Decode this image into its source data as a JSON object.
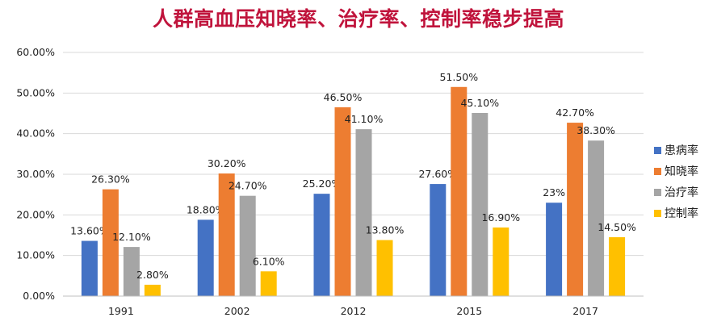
{
  "chart_data": {
    "type": "bar",
    "title": "人群高血压知晓率、治疗率、控制率稳步提高",
    "categories": [
      "1991",
      "2002",
      "2012",
      "2015",
      "2017"
    ],
    "series": [
      {
        "name": "患病率",
        "color": "#4472c4",
        "values": [
          13.6,
          18.8,
          25.2,
          27.6,
          23.0
        ],
        "labels": [
          "13.60%",
          "18.80%",
          "25.20%",
          "27.60%",
          "23%"
        ]
      },
      {
        "name": "知晓率",
        "color": "#ed7d31",
        "values": [
          26.3,
          30.2,
          46.5,
          51.5,
          42.7
        ],
        "labels": [
          "26.30%",
          "30.20%",
          "46.50%",
          "51.50%",
          "42.70%"
        ]
      },
      {
        "name": "治疗率",
        "color": "#a5a5a5",
        "values": [
          12.1,
          24.7,
          41.1,
          45.1,
          38.3
        ],
        "labels": [
          "12.10%",
          "24.70%",
          "41.10%",
          "45.10%",
          "38.30%"
        ]
      },
      {
        "name": "控制率",
        "color": "#ffc000",
        "values": [
          2.8,
          6.1,
          13.8,
          16.9,
          14.5
        ],
        "labels": [
          "2.80%",
          "6.10%",
          "13.80%",
          "16.90%",
          "14.50%"
        ]
      }
    ],
    "yticks": [
      0,
      10,
      20,
      30,
      40,
      50,
      60
    ],
    "ytick_labels": [
      "0.00%",
      "10.00%",
      "20.00%",
      "30.00%",
      "40.00%",
      "50.00%",
      "60.00%"
    ],
    "ylim": [
      0,
      60
    ],
    "xlabel": "",
    "ylabel": "",
    "grid": true,
    "legend": "right"
  }
}
